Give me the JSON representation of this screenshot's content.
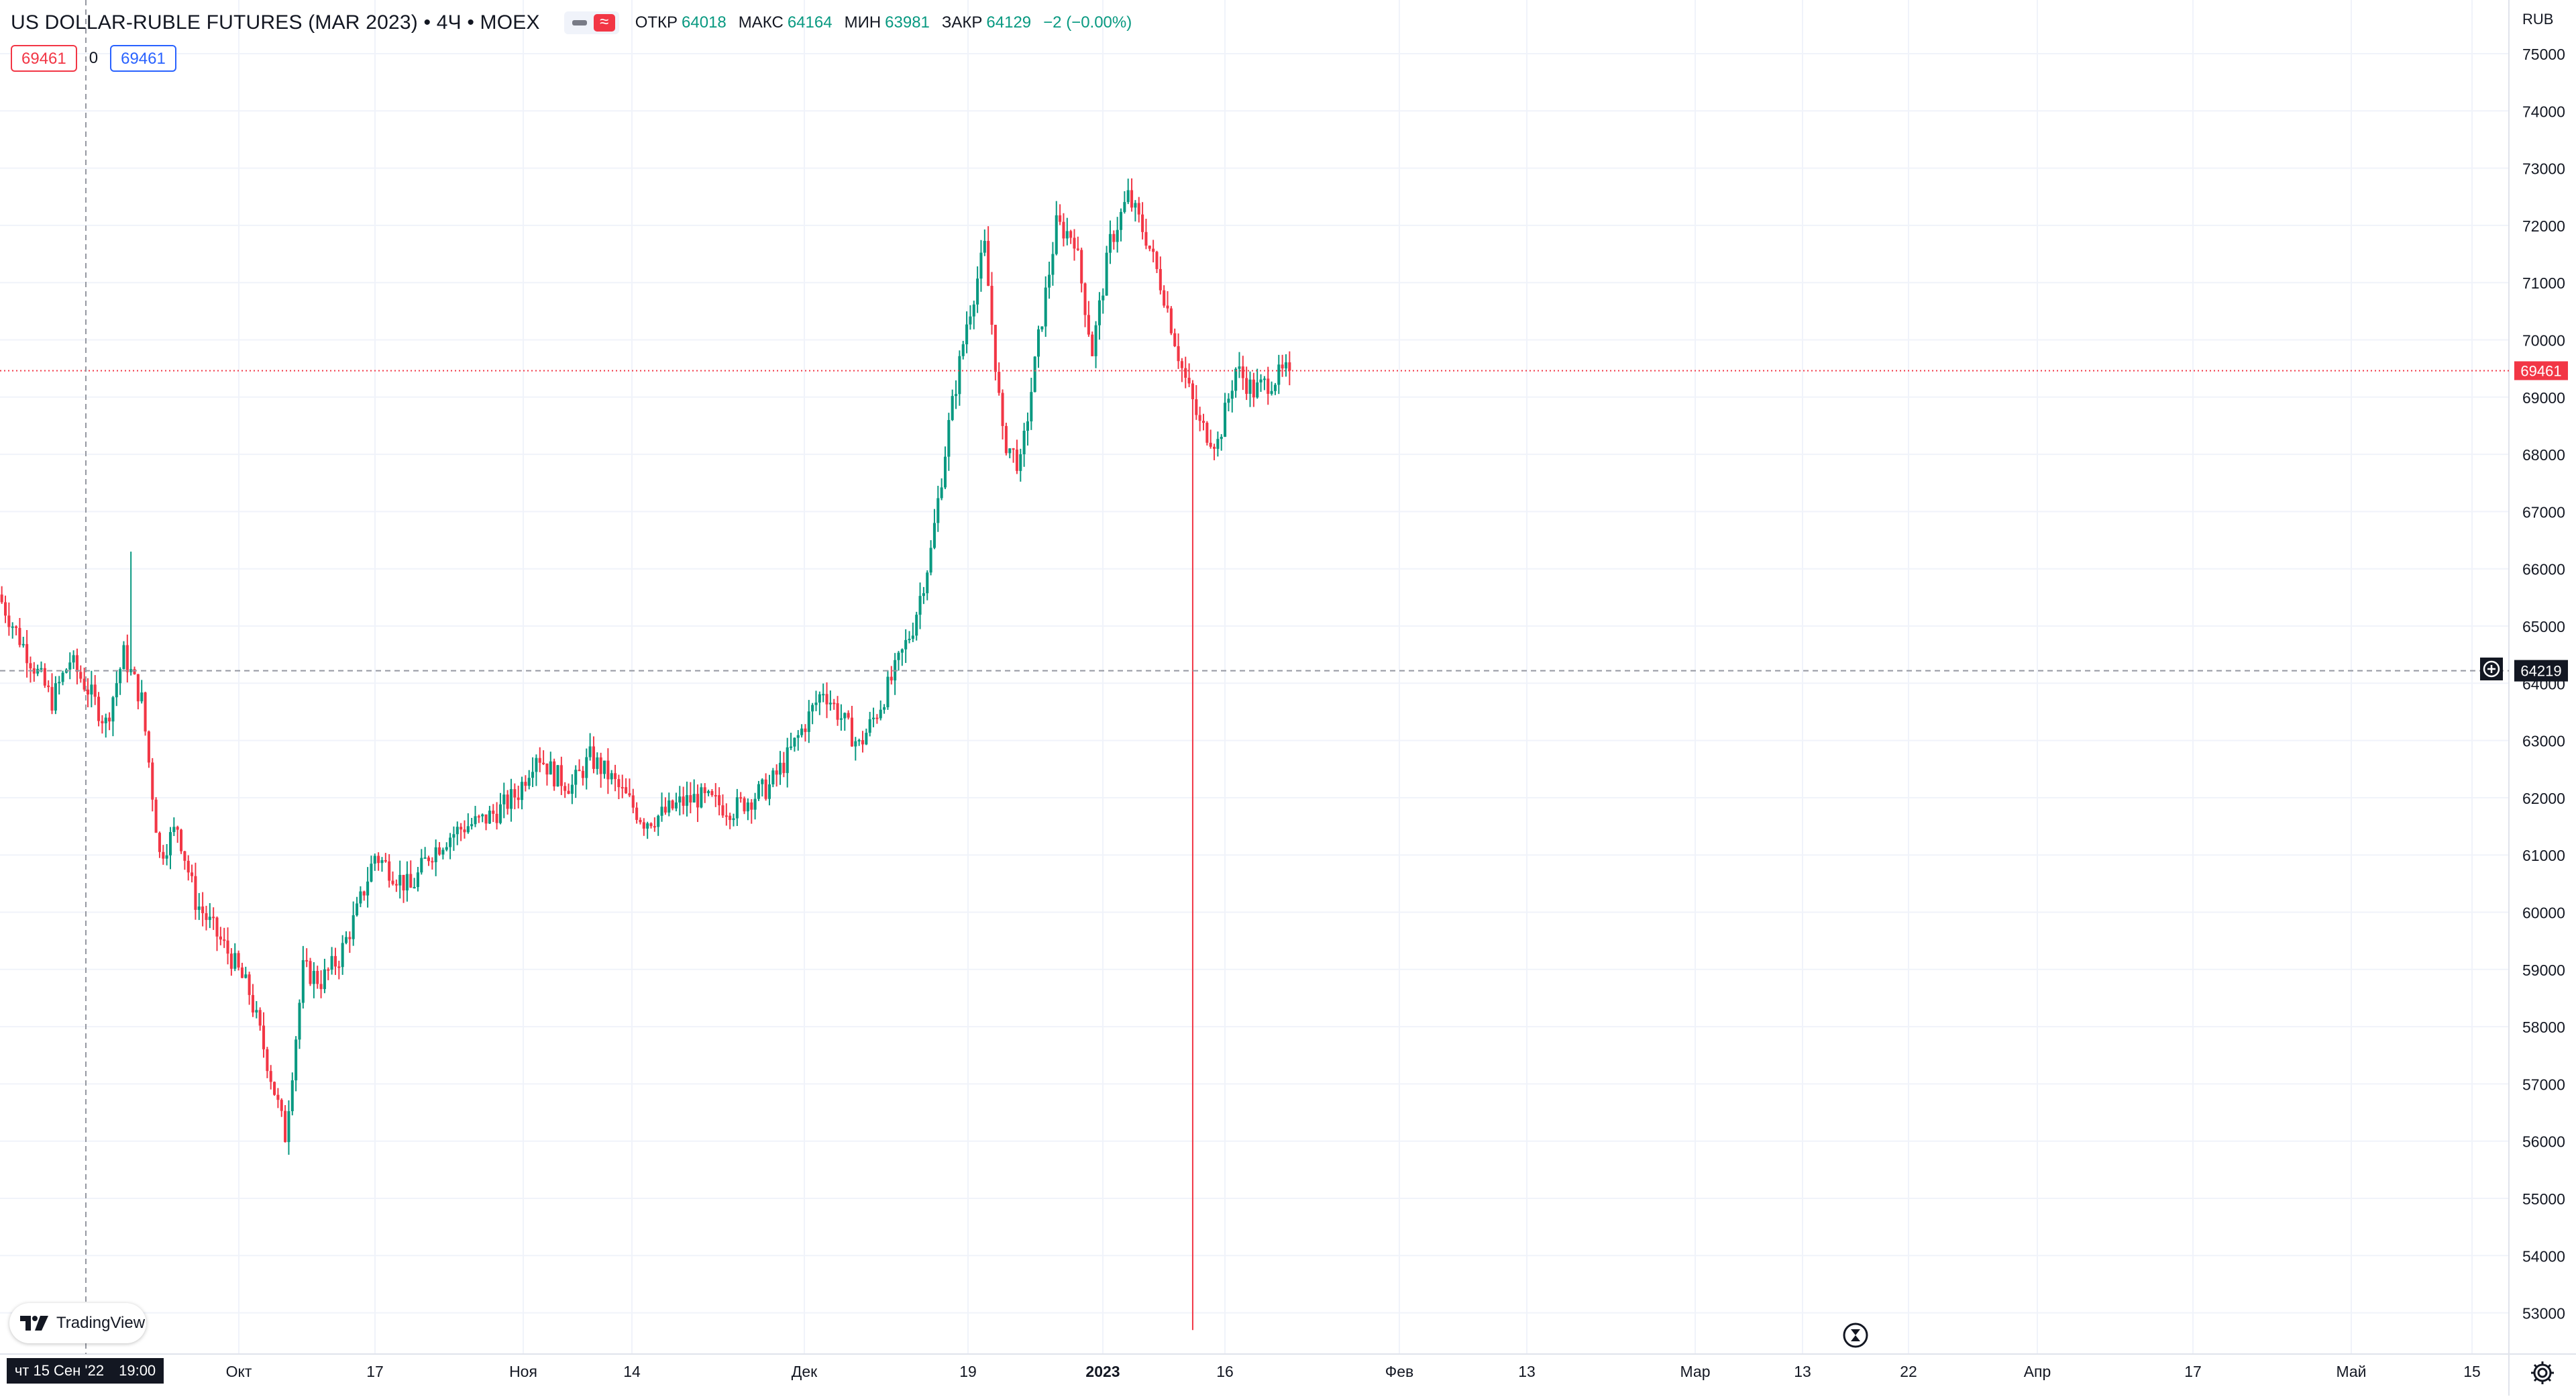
{
  "legend": {
    "title": "US DOLLAR-RUBLE FUTURES (MAR 2023) • 4Ч • MOEX",
    "approx_badge": "≈",
    "open_label": "ОТКР",
    "open_value": "64018",
    "high_label": "МАКС",
    "high_value": "64164",
    "low_label": "МИН",
    "low_value": "63981",
    "close_label": "ЗАКР",
    "close_value": "64129",
    "change": "−2 (−0.00%)"
  },
  "order_panel": {
    "sell_price": "69461",
    "spread": "0",
    "buy_price": "69461"
  },
  "branding": {
    "logo_text": "TradingView"
  },
  "crosshair": {
    "time_label_date": "чт 15 Сен '22",
    "time_label_time": "19:00",
    "price_label": "64219"
  },
  "current_price_label": "69461",
  "chart_data": {
    "type": "candlestick",
    "title": "US DOLLAR-RUBLE FUTURES (MAR 2023) • 4Ч • MOEX",
    "currency": "RUB",
    "ylim": [
      52600,
      75400
    ],
    "y_ticks": [
      53000,
      54000,
      55000,
      56000,
      57000,
      58000,
      59000,
      60000,
      61000,
      62000,
      63000,
      64000,
      65000,
      66000,
      67000,
      68000,
      69000,
      70000,
      71000,
      72000,
      73000,
      74000,
      75000
    ],
    "x_ticks": [
      "Окт",
      "17",
      "Ноя",
      "14",
      "Дек",
      "19",
      "2023",
      "16",
      "Фев",
      "13",
      "Мар",
      "13",
      "22",
      "Апр",
      "17",
      "Май",
      "15"
    ],
    "bold_x_ticks": [
      "2023"
    ],
    "last_price": 69461,
    "crosshair_price": 64219,
    "price_path": [
      65550,
      64900,
      64300,
      63700,
      64400,
      63900,
      63300,
      64500,
      63700,
      61000,
      61500,
      60200,
      59700,
      59200,
      58600,
      57400,
      56100,
      59000,
      58800,
      59200,
      60000,
      61000,
      60700,
      60400,
      61000,
      61300,
      61500,
      61600,
      61800,
      62100,
      62800,
      62400,
      62200,
      62700,
      62400,
      62000,
      61600,
      61700,
      61900,
      62000,
      61900,
      61800,
      62000,
      62200,
      62700,
      63300,
      63900,
      63400,
      62900,
      63500,
      64200,
      65000,
      66300,
      68500,
      70300,
      71600,
      68300,
      67800,
      70000,
      72000,
      71800,
      69800,
      71700,
      72500,
      71800,
      70800,
      69500,
      68500,
      68200,
      69500,
      69100,
      69300,
      69461
    ],
    "colors": {
      "up": "#089981",
      "down": "#f23645",
      "last_price_line": "#f23645",
      "crosshair": "#9598a1"
    }
  }
}
